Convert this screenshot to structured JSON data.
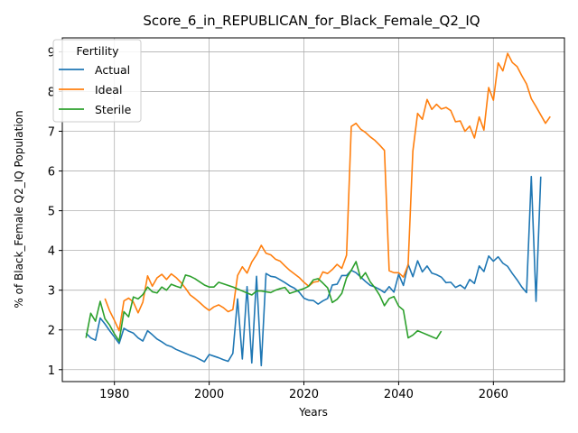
{
  "chart_data": {
    "type": "line",
    "title": "Score_6_in_REPUBLICAN_for_Black_Female_Q2_IQ",
    "xlabel": "Years",
    "ylabel": "% of Black_Female Q2_IQ Population",
    "xlim": [
      1969,
      2075
    ],
    "ylim": [
      0.7,
      9.35
    ],
    "xticks": [
      1980,
      2000,
      2020,
      2040,
      2060
    ],
    "yticks": [
      1,
      2,
      3,
      4,
      5,
      6,
      7,
      8,
      9
    ],
    "grid": true,
    "legend": {
      "title": "Fertility",
      "position": "upper-left"
    },
    "series": [
      {
        "name": "Actual",
        "color": "#1f77b4",
        "points": [
          [
            1974,
            1.92
          ],
          [
            1975,
            1.8
          ],
          [
            1976,
            1.74
          ],
          [
            1977,
            2.3
          ],
          [
            1978,
            2.15
          ],
          [
            1979,
            1.98
          ],
          [
            1980,
            1.82
          ],
          [
            1981,
            1.66
          ],
          [
            1982,
            2.04
          ],
          [
            1983,
            1.97
          ],
          [
            1984,
            1.92
          ],
          [
            1985,
            1.8
          ],
          [
            1986,
            1.72
          ],
          [
            1987,
            1.98
          ],
          [
            1988,
            1.88
          ],
          [
            1989,
            1.77
          ],
          [
            1990,
            1.7
          ],
          [
            1991,
            1.62
          ],
          [
            1992,
            1.58
          ],
          [
            1993,
            1.51
          ],
          [
            1994,
            1.46
          ],
          [
            1995,
            1.41
          ],
          [
            1996,
            1.36
          ],
          [
            1997,
            1.32
          ],
          [
            1998,
            1.26
          ],
          [
            1999,
            1.2
          ],
          [
            2000,
            1.38
          ],
          [
            2001,
            1.34
          ],
          [
            2002,
            1.3
          ],
          [
            2003,
            1.25
          ],
          [
            2004,
            1.21
          ],
          [
            2005,
            1.41
          ],
          [
            2006,
            2.78
          ],
          [
            2007,
            1.27
          ],
          [
            2008,
            3.09
          ],
          [
            2009,
            1.17
          ],
          [
            2010,
            3.35
          ],
          [
            2011,
            1.1
          ],
          [
            2012,
            3.42
          ],
          [
            2013,
            3.35
          ],
          [
            2014,
            3.33
          ],
          [
            2015,
            3.26
          ],
          [
            2016,
            3.19
          ],
          [
            2017,
            3.11
          ],
          [
            2018,
            3.05
          ],
          [
            2019,
            2.95
          ],
          [
            2020,
            2.8
          ],
          [
            2021,
            2.75
          ],
          [
            2022,
            2.74
          ],
          [
            2023,
            2.65
          ],
          [
            2024,
            2.73
          ],
          [
            2025,
            2.79
          ],
          [
            2026,
            3.13
          ],
          [
            2027,
            3.15
          ],
          [
            2028,
            3.37
          ],
          [
            2029,
            3.37
          ],
          [
            2030,
            3.5
          ],
          [
            2031,
            3.44
          ],
          [
            2032,
            3.33
          ],
          [
            2033,
            3.22
          ],
          [
            2034,
            3.12
          ],
          [
            2035,
            3.08
          ],
          [
            2036,
            3.02
          ],
          [
            2037,
            2.94
          ],
          [
            2038,
            3.09
          ],
          [
            2039,
            2.95
          ],
          [
            2040,
            3.4
          ],
          [
            2041,
            3.12
          ],
          [
            2042,
            3.65
          ],
          [
            2043,
            3.34
          ],
          [
            2044,
            3.74
          ],
          [
            2045,
            3.46
          ],
          [
            2046,
            3.61
          ],
          [
            2047,
            3.43
          ],
          [
            2048,
            3.39
          ],
          [
            2049,
            3.33
          ],
          [
            2050,
            3.19
          ],
          [
            2051,
            3.2
          ],
          [
            2052,
            3.07
          ],
          [
            2053,
            3.13
          ],
          [
            2054,
            3.04
          ],
          [
            2055,
            3.27
          ],
          [
            2056,
            3.17
          ],
          [
            2057,
            3.61
          ],
          [
            2058,
            3.47
          ],
          [
            2059,
            3.86
          ],
          [
            2060,
            3.73
          ],
          [
            2061,
            3.84
          ],
          [
            2062,
            3.68
          ],
          [
            2063,
            3.6
          ],
          [
            2064,
            3.42
          ],
          [
            2065,
            3.26
          ],
          [
            2066,
            3.08
          ],
          [
            2067,
            2.94
          ],
          [
            2068,
            5.86
          ],
          [
            2069,
            2.72
          ],
          [
            2070,
            5.86
          ]
        ]
      },
      {
        "name": "Ideal",
        "color": "#ff7f0e",
        "points": [
          [
            1978,
            2.79
          ],
          [
            1979,
            2.48
          ],
          [
            1980,
            2.24
          ],
          [
            1981,
            1.98
          ],
          [
            1982,
            2.73
          ],
          [
            1983,
            2.8
          ],
          [
            1984,
            2.7
          ],
          [
            1985,
            2.43
          ],
          [
            1986,
            2.7
          ],
          [
            1987,
            3.36
          ],
          [
            1988,
            3.1
          ],
          [
            1989,
            3.31
          ],
          [
            1990,
            3.4
          ],
          [
            1991,
            3.27
          ],
          [
            1992,
            3.41
          ],
          [
            1993,
            3.32
          ],
          [
            1994,
            3.2
          ],
          [
            1995,
            3.05
          ],
          [
            1996,
            2.88
          ],
          [
            1997,
            2.79
          ],
          [
            1998,
            2.69
          ],
          [
            1999,
            2.58
          ],
          [
            2000,
            2.49
          ],
          [
            2001,
            2.58
          ],
          [
            2002,
            2.63
          ],
          [
            2003,
            2.56
          ],
          [
            2004,
            2.46
          ],
          [
            2005,
            2.51
          ],
          [
            2006,
            3.37
          ],
          [
            2007,
            3.59
          ],
          [
            2008,
            3.43
          ],
          [
            2009,
            3.71
          ],
          [
            2010,
            3.89
          ],
          [
            2011,
            4.13
          ],
          [
            2012,
            3.93
          ],
          [
            2013,
            3.89
          ],
          [
            2014,
            3.78
          ],
          [
            2015,
            3.73
          ],
          [
            2016,
            3.61
          ],
          [
            2017,
            3.5
          ],
          [
            2018,
            3.41
          ],
          [
            2019,
            3.32
          ],
          [
            2020,
            3.2
          ],
          [
            2021,
            3.1
          ],
          [
            2022,
            3.2
          ],
          [
            2023,
            3.22
          ],
          [
            2024,
            3.46
          ],
          [
            2025,
            3.42
          ],
          [
            2026,
            3.52
          ],
          [
            2027,
            3.65
          ],
          [
            2028,
            3.55
          ],
          [
            2029,
            3.88
          ],
          [
            2030,
            7.12
          ],
          [
            2031,
            7.2
          ],
          [
            2032,
            7.05
          ],
          [
            2033,
            6.97
          ],
          [
            2034,
            6.86
          ],
          [
            2035,
            6.77
          ],
          [
            2036,
            6.65
          ],
          [
            2037,
            6.52
          ],
          [
            2038,
            3.49
          ],
          [
            2039,
            3.44
          ],
          [
            2040,
            3.44
          ],
          [
            2041,
            3.33
          ],
          [
            2042,
            3.64
          ],
          [
            2043,
            6.5
          ],
          [
            2044,
            7.45
          ],
          [
            2045,
            7.3
          ],
          [
            2046,
            7.8
          ],
          [
            2047,
            7.55
          ],
          [
            2048,
            7.68
          ],
          [
            2049,
            7.56
          ],
          [
            2050,
            7.6
          ],
          [
            2051,
            7.52
          ],
          [
            2052,
            7.24
          ],
          [
            2053,
            7.26
          ],
          [
            2054,
            7.0
          ],
          [
            2055,
            7.13
          ],
          [
            2056,
            6.83
          ],
          [
            2057,
            7.36
          ],
          [
            2058,
            7.03
          ],
          [
            2059,
            8.1
          ],
          [
            2060,
            7.78
          ],
          [
            2061,
            8.72
          ],
          [
            2062,
            8.52
          ],
          [
            2063,
            8.96
          ],
          [
            2064,
            8.73
          ],
          [
            2065,
            8.63
          ],
          [
            2066,
            8.4
          ],
          [
            2067,
            8.19
          ],
          [
            2068,
            7.82
          ],
          [
            2069,
            7.62
          ],
          [
            2070,
            7.41
          ],
          [
            2071,
            7.2
          ],
          [
            2072,
            7.37
          ]
        ]
      },
      {
        "name": "Sterile",
        "color": "#2ca02c",
        "points": [
          [
            1974,
            1.8
          ],
          [
            1975,
            2.42
          ],
          [
            1976,
            2.22
          ],
          [
            1977,
            2.72
          ],
          [
            1978,
            2.28
          ],
          [
            1979,
            2.12
          ],
          [
            1980,
            1.9
          ],
          [
            1981,
            1.72
          ],
          [
            1982,
            2.46
          ],
          [
            1983,
            2.33
          ],
          [
            1984,
            2.83
          ],
          [
            1985,
            2.78
          ],
          [
            1986,
            2.89
          ],
          [
            1987,
            3.08
          ],
          [
            1988,
            2.96
          ],
          [
            1989,
            2.93
          ],
          [
            1990,
            3.08
          ],
          [
            1991,
            3.0
          ],
          [
            1992,
            3.15
          ],
          [
            1993,
            3.1
          ],
          [
            1994,
            3.06
          ],
          [
            1995,
            3.38
          ],
          [
            1996,
            3.35
          ],
          [
            1997,
            3.29
          ],
          [
            1998,
            3.21
          ],
          [
            1999,
            3.13
          ],
          [
            2000,
            3.08
          ],
          [
            2001,
            3.08
          ],
          [
            2002,
            3.2
          ],
          [
            2003,
            3.16
          ],
          [
            2004,
            3.12
          ],
          [
            2005,
            3.08
          ],
          [
            2006,
            3.03
          ],
          [
            2007,
            2.98
          ],
          [
            2008,
            2.93
          ],
          [
            2009,
            2.88
          ],
          [
            2010,
            2.98
          ],
          [
            2011,
            2.98
          ],
          [
            2012,
            2.96
          ],
          [
            2013,
            2.94
          ],
          [
            2014,
            3.0
          ],
          [
            2015,
            3.04
          ],
          [
            2016,
            3.07
          ],
          [
            2017,
            2.92
          ],
          [
            2018,
            2.96
          ],
          [
            2019,
            3.0
          ],
          [
            2020,
            3.04
          ],
          [
            2021,
            3.1
          ],
          [
            2022,
            3.26
          ],
          [
            2023,
            3.29
          ],
          [
            2024,
            3.18
          ],
          [
            2025,
            3.06
          ],
          [
            2026,
            2.69
          ],
          [
            2027,
            2.77
          ],
          [
            2028,
            2.92
          ],
          [
            2029,
            3.31
          ],
          [
            2030,
            3.5
          ],
          [
            2031,
            3.72
          ],
          [
            2032,
            3.29
          ],
          [
            2033,
            3.44
          ],
          [
            2034,
            3.21
          ],
          [
            2035,
            3.06
          ],
          [
            2036,
            2.87
          ],
          [
            2037,
            2.61
          ],
          [
            2038,
            2.79
          ],
          [
            2039,
            2.84
          ],
          [
            2040,
            2.6
          ],
          [
            2041,
            2.5
          ],
          [
            2042,
            1.8
          ],
          [
            2043,
            1.87
          ],
          [
            2044,
            1.98
          ],
          [
            2045,
            1.93
          ],
          [
            2046,
            1.88
          ],
          [
            2047,
            1.83
          ],
          [
            2048,
            1.78
          ],
          [
            2049,
            1.97
          ]
        ]
      }
    ]
  }
}
